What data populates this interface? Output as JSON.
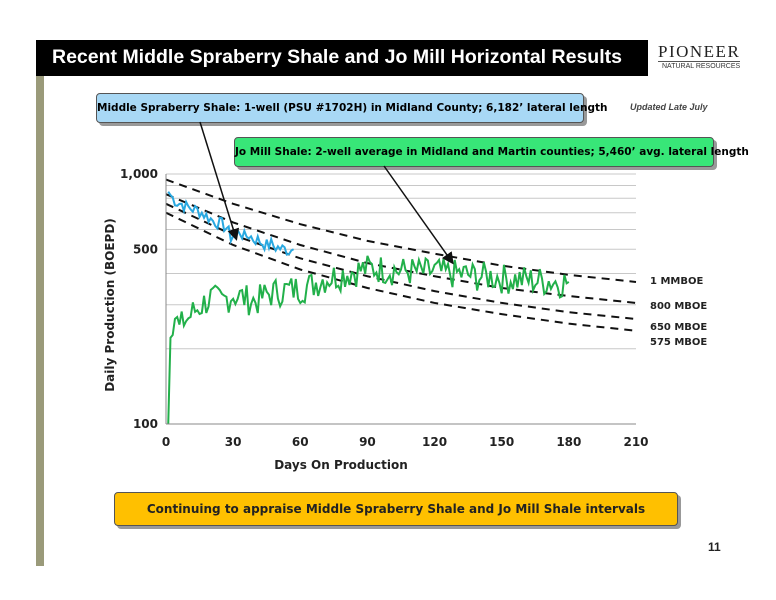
{
  "slide": {
    "title": "Recent Middle Spraberry Shale and Jo Mill Horizontal Results",
    "logo_top": "PIONEER",
    "logo_bottom": "NATURAL RESOURCES",
    "updated": "Updated Late July",
    "callout_blue": "Middle Spraberry Shale: 1-well (PSU #1702H) in Midland County; 6,182’ lateral length",
    "callout_green": "Jo Mill Shale: 2-well average in Midland and Martin counties; 5,460’ avg. lateral length",
    "bottom_banner": "Continuing to appraise Middle Spraberry Shale and Jo Mill Shale intervals",
    "page_number": "11",
    "colors": {
      "title_bg": "#000000",
      "blue": "#29a8e0",
      "green": "#22b04a",
      "banner": "#ffc000",
      "callout_blue_bg": "#a8d8f5",
      "callout_green_bg": "#38e678"
    }
  },
  "chart_data": {
    "type": "line",
    "xlabel": "Days On Production",
    "ylabel": "Daily Production (BOEPD)",
    "xlim": [
      0,
      210
    ],
    "ylim": [
      100,
      1000
    ],
    "yscale": "log",
    "x_ticks": [
      "0",
      "30",
      "60",
      "90",
      "120",
      "150",
      "180",
      "210"
    ],
    "y_ticks": [
      "100",
      "500",
      "1,000"
    ],
    "grid": true,
    "series": [
      {
        "name": "Middle Spraberry Shale",
        "color": "#29a8e0",
        "x": [
          1,
          3,
          5,
          7,
          9,
          11,
          13,
          15,
          17,
          19,
          21,
          23,
          25,
          27,
          29,
          31,
          33,
          35,
          37,
          39,
          41,
          43,
          45,
          47,
          49,
          51,
          53,
          55,
          57
        ],
        "values": [
          850,
          800,
          770,
          760,
          740,
          730,
          720,
          710,
          690,
          670,
          650,
          640,
          630,
          610,
          560,
          580,
          590,
          560,
          570,
          550,
          545,
          530,
          520,
          525,
          510,
          505,
          500,
          495,
          500
        ]
      },
      {
        "name": "Jo Mill Shale",
        "color": "#22b04a",
        "x": [
          1,
          2,
          4,
          6,
          8,
          10,
          12,
          14,
          16,
          18,
          20,
          25,
          30,
          35,
          40,
          45,
          50,
          55,
          60,
          65,
          70,
          75,
          80,
          85,
          90,
          95,
          100,
          105,
          110,
          115,
          120,
          125,
          130,
          135,
          140,
          145,
          150,
          155,
          160,
          165,
          170,
          175,
          180
        ],
        "values": [
          100,
          250,
          270,
          240,
          260,
          265,
          280,
          290,
          300,
          310,
          320,
          310,
          330,
          320,
          310,
          330,
          340,
          345,
          350,
          360,
          380,
          390,
          400,
          410,
          420,
          420,
          415,
          410,
          410,
          405,
          410,
          400,
          400,
          395,
          390,
          390,
          385,
          380,
          380,
          375,
          375,
          370,
          370
        ]
      },
      {
        "name": "1 MMBOE",
        "x": [
          0,
          30,
          60,
          90,
          120,
          150,
          180,
          210
        ],
        "values": [
          950,
          760,
          630,
          540,
          480,
          430,
          395,
          370
        ]
      },
      {
        "name": "800 MBOE",
        "x": [
          0,
          30,
          60,
          90,
          120,
          150,
          180,
          210
        ],
        "values": [
          830,
          640,
          520,
          440,
          390,
          350,
          325,
          305
        ]
      },
      {
        "name": "650 MBOE",
        "x": [
          0,
          30,
          60,
          90,
          120,
          150,
          180,
          210
        ],
        "values": [
          760,
          570,
          460,
          390,
          340,
          305,
          280,
          263
        ]
      },
      {
        "name": "575 MBOE",
        "x": [
          0,
          30,
          60,
          90,
          120,
          150,
          180,
          210
        ],
        "values": [
          700,
          520,
          415,
          350,
          305,
          275,
          252,
          236
        ]
      }
    ],
    "annotations": [
      "1 MMBOE",
      "800 MBOE",
      "650 MBOE",
      "575 MBOE"
    ]
  }
}
